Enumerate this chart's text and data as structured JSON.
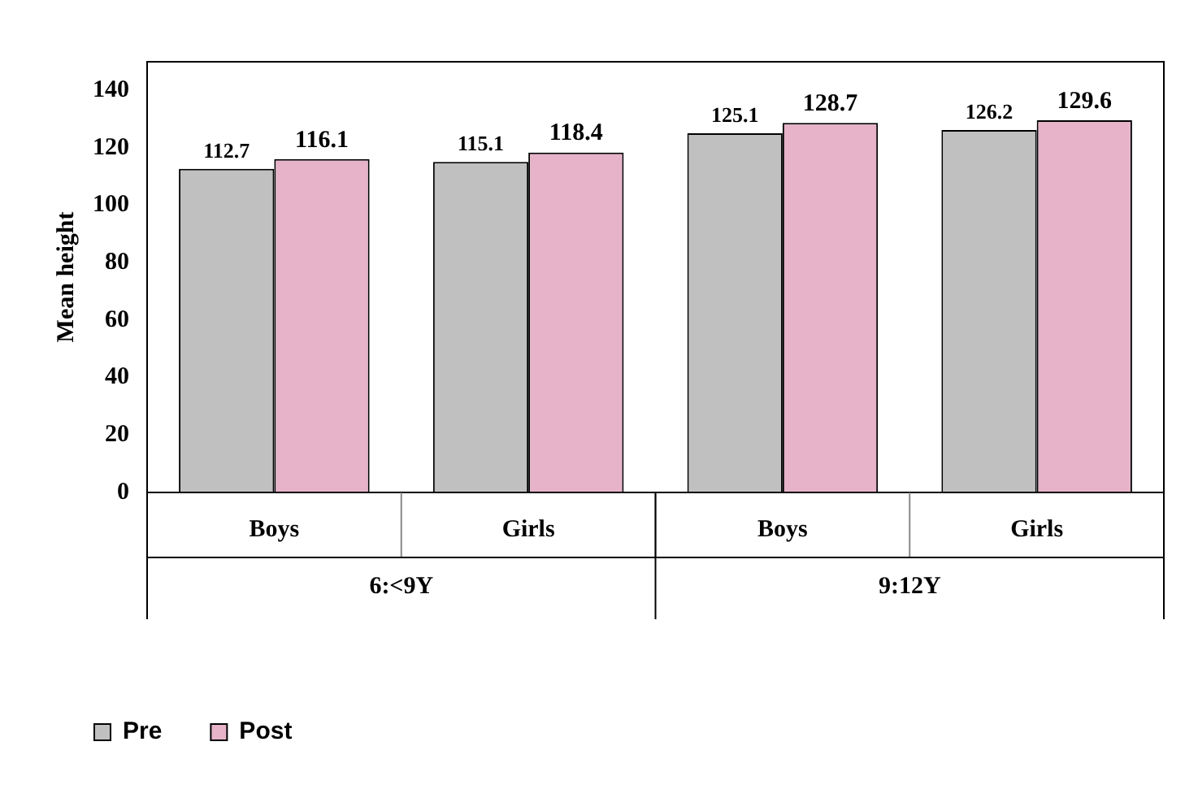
{
  "chart_data": {
    "type": "bar",
    "ylabel": "Mean height",
    "categories": [
      "Boys",
      "Girls",
      "Boys",
      "Girls"
    ],
    "series": [
      {
        "name": "Pre",
        "color": "#c0c0c0",
        "values": [
          112.7,
          115.1,
          125.1,
          126.2
        ]
      },
      {
        "name": "Post",
        "color": "#e6b3c9",
        "values": [
          116.1,
          118.4,
          128.7,
          129.6
        ]
      }
    ],
    "ylim": [
      0,
      150
    ],
    "yticks": [
      0,
      20,
      40,
      60,
      80,
      100,
      120,
      140
    ],
    "grid": false,
    "data_labels": true,
    "legend": "bottom left",
    "annotations": [
      "6:<9Y",
      "9:12Y"
    ]
  }
}
